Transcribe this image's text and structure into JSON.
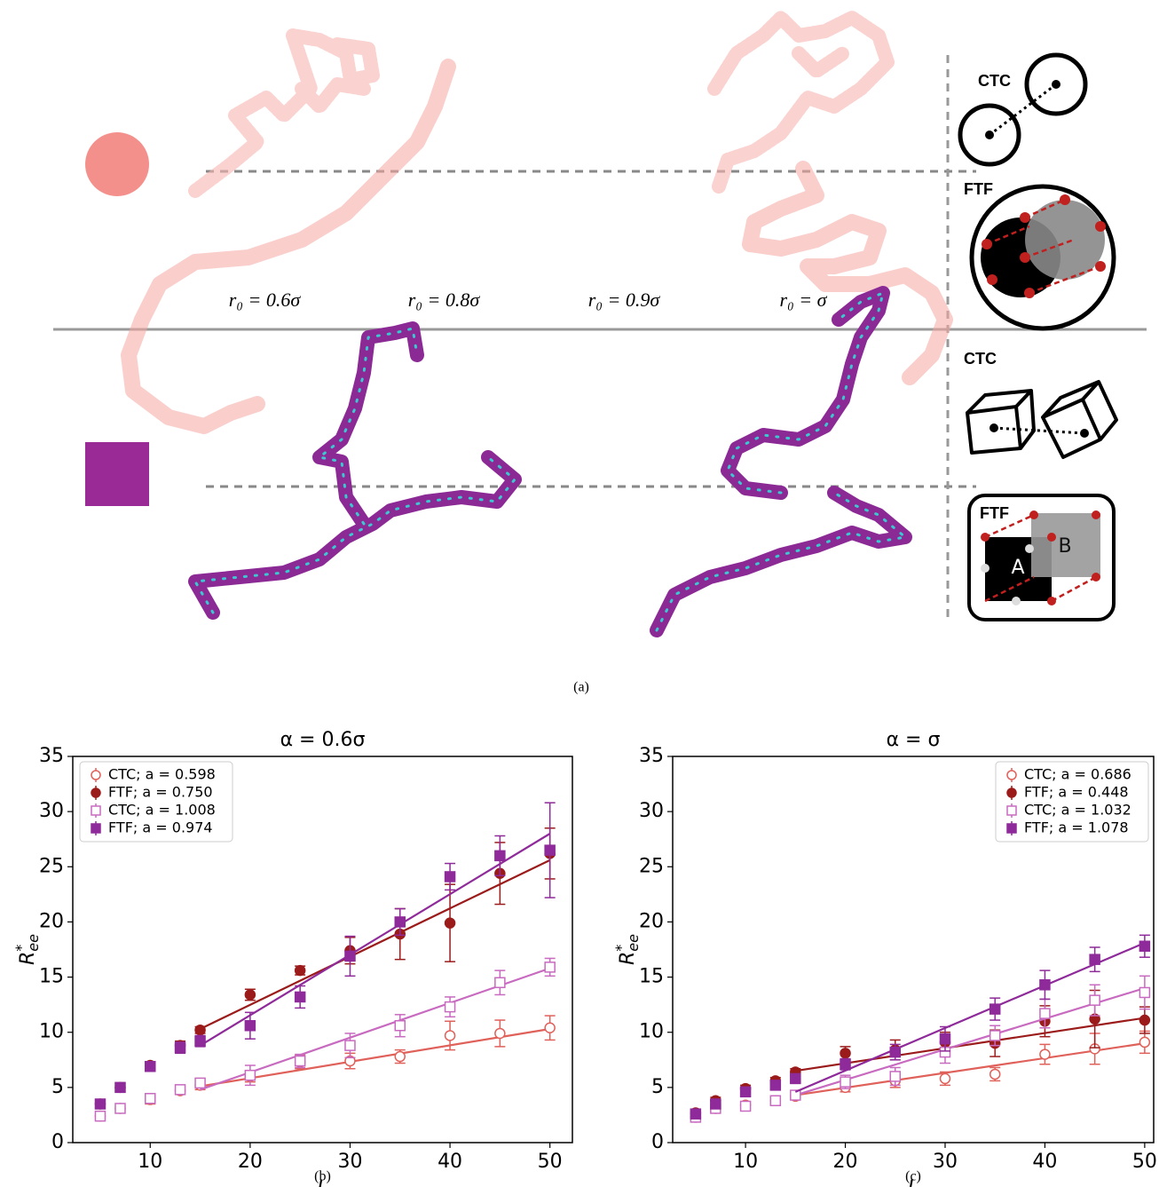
{
  "panel_a": {
    "caption": "(a)",
    "r_labels": [
      "r₀ = 0.6σ",
      "r₀ = 0.8σ",
      "r₀ = 0.9σ",
      "r₀ = σ"
    ],
    "ctc_top": "CTC",
    "ftf_top": "FTF",
    "ctc_bottom": "CTC",
    "ftf_bottom": "FTF",
    "cube_a": "A",
    "cube_b": "B"
  },
  "chart_data": [
    {
      "type": "errorbar",
      "title": "α = 0.6σ",
      "caption": "(b)",
      "xlabel": "L",
      "ylabel": {
        "base": "R",
        "sup": "*",
        "sub": "ee"
      },
      "xlim": [
        2.25,
        52.25
      ],
      "ylim": [
        0,
        35
      ],
      "xticks": [
        10,
        20,
        30,
        40,
        50
      ],
      "yticks": [
        0,
        5,
        10,
        15,
        20,
        25,
        30,
        35
      ],
      "legend": "upper left",
      "x": [
        5,
        7,
        10,
        13,
        15,
        20,
        25,
        30,
        35,
        40,
        45,
        50
      ],
      "series": [
        {
          "name": "CTC; a = 0.598",
          "color": "#e0605a",
          "marker": "circle",
          "filled": false,
          "values": [
            2.4,
            3.1,
            3.9,
            4.7,
            5.2,
            6.0,
            7.3,
            7.4,
            7.8,
            9.7,
            9.9,
            10.4
          ],
          "errors": [
            0.3,
            0.3,
            0.4,
            0.3,
            0.4,
            0.5,
            0.6,
            0.7,
            0.6,
            1.3,
            1.2,
            1.1
          ],
          "fit": {
            "x": [
              15,
              50
            ],
            "values": [
              5.1,
              10.3
            ]
          }
        },
        {
          "name": "FTF; a = 0.750",
          "color": "#9b1b1b",
          "marker": "circle",
          "filled": true,
          "values": [
            3.5,
            5.0,
            7.0,
            8.8,
            10.2,
            13.4,
            15.6,
            17.4,
            18.9,
            19.9,
            24.4,
            26.2
          ],
          "errors": [
            0.3,
            0.3,
            0.3,
            0.4,
            0.3,
            0.5,
            0.4,
            1.2,
            2.3,
            3.5,
            2.8,
            2.3
          ],
          "fit": {
            "x": [
              15,
              50
            ],
            "values": [
              10.3,
              25.6
            ]
          }
        },
        {
          "name": "CTC; a = 1.008",
          "color": "#c86ac0",
          "marker": "square",
          "filled": false,
          "values": [
            2.4,
            3.1,
            4.0,
            4.8,
            5.4,
            6.1,
            7.4,
            8.8,
            10.6,
            12.3,
            14.5,
            15.9
          ],
          "errors": [
            0.3,
            0.3,
            0.4,
            0.3,
            0.4,
            0.9,
            0.6,
            1.1,
            1.0,
            0.9,
            1.1,
            0.8
          ],
          "fit": {
            "x": [
              15,
              50
            ],
            "values": [
              4.8,
              15.8
            ]
          }
        },
        {
          "name": "FTF; a = 0.974",
          "color": "#8e2a99",
          "marker": "square",
          "filled": true,
          "values": [
            3.5,
            5.0,
            6.9,
            8.6,
            9.2,
            10.6,
            13.2,
            16.9,
            20.0,
            24.1,
            26.0,
            26.5
          ],
          "errors": [
            0.3,
            0.3,
            0.3,
            0.5,
            0.5,
            1.2,
            1.0,
            1.8,
            1.2,
            1.2,
            1.8,
            4.3
          ],
          "fit": {
            "x": [
              15,
              50
            ],
            "values": [
              8.8,
              28.0
            ]
          }
        }
      ]
    },
    {
      "type": "errorbar",
      "title": "α = σ",
      "caption": "(c)",
      "xlabel": "L",
      "ylabel": {
        "base": "R",
        "sup": "*",
        "sub": "ee"
      },
      "xlim": [
        2.7,
        50.9
      ],
      "ylim": [
        0,
        35
      ],
      "xticks": [
        10,
        20,
        30,
        40,
        50
      ],
      "yticks": [
        0,
        5,
        10,
        15,
        20,
        25,
        30,
        35
      ],
      "legend": "upper right",
      "x": [
        5,
        7,
        10,
        13,
        15,
        20,
        25,
        30,
        35,
        40,
        45,
        50
      ],
      "series": [
        {
          "name": "CTC; a = 0.686",
          "color": "#e0605a",
          "marker": "circle",
          "filled": false,
          "values": [
            2.3,
            3.1,
            3.4,
            3.8,
            4.2,
            5.0,
            5.6,
            5.8,
            6.2,
            8.0,
            8.5,
            9.1
          ],
          "errors": [
            0.3,
            0.3,
            0.3,
            0.3,
            0.3,
            0.4,
            0.6,
            0.6,
            0.6,
            0.9,
            1.4,
            1.0
          ],
          "fit": {
            "x": [
              15,
              50
            ],
            "values": [
              4.3,
              9.0
            ]
          }
        },
        {
          "name": "FTF; a = 0.448",
          "color": "#9b1b1b",
          "marker": "circle",
          "filled": true,
          "values": [
            2.7,
            3.8,
            4.9,
            5.6,
            6.4,
            8.1,
            8.4,
            9.1,
            9.0,
            11.0,
            11.2,
            11.1
          ],
          "errors": [
            0.3,
            0.3,
            0.3,
            0.3,
            0.3,
            0.6,
            0.9,
            0.9,
            1.2,
            1.4,
            2.6,
            1.2
          ],
          "fit": {
            "x": [
              15,
              50
            ],
            "values": [
              6.5,
              11.3
            ]
          }
        },
        {
          "name": "CTC; a = 1.032",
          "color": "#c86ac0",
          "marker": "square",
          "filled": false,
          "values": [
            2.3,
            3.1,
            3.3,
            3.8,
            4.3,
            5.5,
            6.0,
            8.2,
            9.7,
            11.7,
            12.9,
            13.6
          ],
          "errors": [
            0.3,
            0.3,
            0.3,
            0.3,
            0.3,
            0.6,
            0.8,
            1.0,
            0.9,
            1.3,
            1.4,
            1.5
          ],
          "fit": {
            "x": [
              15,
              50
            ],
            "values": [
              4.3,
              14.0
            ]
          }
        },
        {
          "name": "FTF; a = 1.078",
          "color": "#8e2a99",
          "marker": "square",
          "filled": true,
          "values": [
            2.6,
            3.5,
            4.6,
            5.2,
            5.8,
            7.1,
            8.2,
            9.4,
            12.1,
            14.3,
            16.6,
            17.8
          ],
          "errors": [
            0.3,
            0.3,
            0.3,
            0.3,
            0.3,
            0.5,
            0.7,
            1.1,
            1.0,
            1.3,
            1.1,
            1.0
          ],
          "fit": {
            "x": [
              15,
              50
            ],
            "values": [
              4.6,
              18.1
            ]
          }
        }
      ]
    }
  ]
}
